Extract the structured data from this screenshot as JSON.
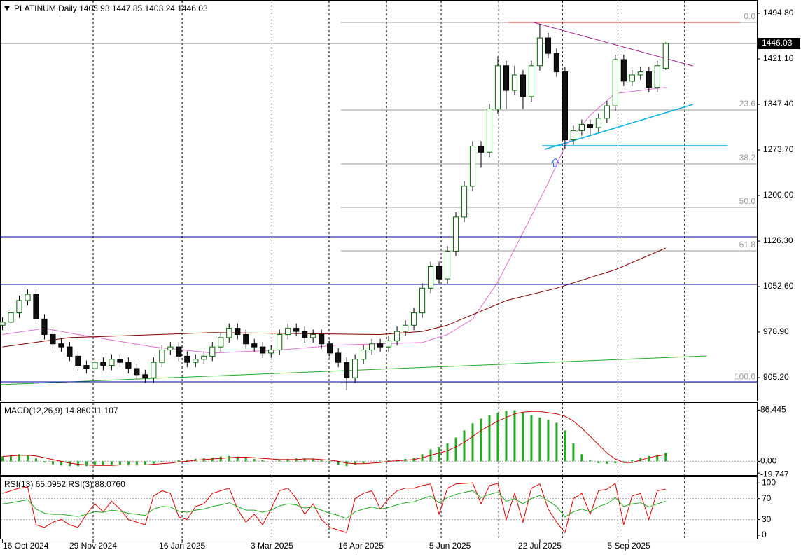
{
  "chart_data": {
    "type": "candlestick",
    "title": "PLATINUM,Daily  1405.93 1447.85 1403.24 1446.03",
    "xlim": [
      -0.25,
      89.9
    ],
    "xticks": [
      {
        "value": 0,
        "label": "16 Oct 2024"
      },
      {
        "value": 10.8,
        "label": "29 Nov 2024"
      },
      {
        "value": 21.4,
        "label": "16 Jan 2025"
      },
      {
        "value": 32.1,
        "label": "3 Mar 2025"
      },
      {
        "value": 42.7,
        "label": "16 Apr 2025"
      },
      {
        "value": 53.3,
        "label": "5 Jun 2025"
      },
      {
        "value": 64,
        "label": "22 Jul 2025"
      },
      {
        "value": 74.6,
        "label": "5 Sep 2025"
      }
    ],
    "vgrid": [
      10.8,
      21.4,
      32.1,
      38.9,
      45.75,
      52.25,
      59.1,
      66.7,
      73.3,
      81.25
    ],
    "ylim": [
      866.7,
      1515.2
    ],
    "yticks": [
      {
        "value": 1494.8,
        "label": "1494.80"
      },
      {
        "value": 1421.1,
        "label": "1421.10"
      },
      {
        "value": 1347.4,
        "label": "1347.40"
      },
      {
        "value": 1273.7,
        "label": "1273.70"
      },
      {
        "value": 1200,
        "label": "1200.00"
      },
      {
        "value": 1126.3,
        "label": "1126.30"
      },
      {
        "value": 1052.6,
        "label": "1052.60"
      },
      {
        "value": 978.9,
        "label": "978.90"
      },
      {
        "value": 905.2,
        "label": "905.20"
      }
    ],
    "last_price": {
      "value": 1446.03,
      "label": "1446.03"
    },
    "candles": [
      [
        990,
        1003,
        982,
        995
      ],
      [
        995,
        1018,
        987,
        1010
      ],
      [
        1010,
        1038,
        1002,
        1030
      ],
      [
        1030,
        1048,
        1022,
        1040
      ],
      [
        1040,
        1048,
        992,
        1000
      ],
      [
        1000,
        1008,
        967,
        975
      ],
      [
        975,
        983,
        952,
        960
      ],
      [
        960,
        968,
        947,
        955
      ],
      [
        955,
        963,
        932,
        940
      ],
      [
        940,
        948,
        917,
        925
      ],
      [
        925,
        933,
        912,
        920
      ],
      [
        920,
        938,
        912,
        930
      ],
      [
        930,
        938,
        917,
        925
      ],
      [
        925,
        943,
        917,
        935
      ],
      [
        935,
        943,
        922,
        930
      ],
      [
        930,
        938,
        912,
        920
      ],
      [
        920,
        928,
        902,
        910
      ],
      [
        910,
        918,
        897,
        905
      ],
      [
        905,
        938,
        897,
        930
      ],
      [
        930,
        958,
        922,
        950
      ],
      [
        950,
        963,
        942,
        955
      ],
      [
        955,
        963,
        932,
        940
      ],
      [
        940,
        948,
        922,
        930
      ],
      [
        930,
        943,
        922,
        935
      ],
      [
        935,
        948,
        927,
        940
      ],
      [
        940,
        963,
        932,
        955
      ],
      [
        955,
        978,
        947,
        970
      ],
      [
        970,
        993,
        962,
        985
      ],
      [
        985,
        993,
        967,
        975
      ],
      [
        975,
        983,
        952,
        960
      ],
      [
        960,
        968,
        947,
        955
      ],
      [
        955,
        963,
        937,
        945
      ],
      [
        945,
        958,
        937,
        950
      ],
      [
        950,
        983,
        942,
        975
      ],
      [
        975,
        993,
        967,
        985
      ],
      [
        985,
        993,
        972,
        980
      ],
      [
        980,
        988,
        962,
        970
      ],
      [
        970,
        983,
        962,
        975
      ],
      [
        975,
        983,
        952,
        960
      ],
      [
        960,
        968,
        937,
        945
      ],
      [
        945,
        953,
        922,
        930
      ],
      [
        930,
        938,
        885,
        905
      ],
      [
        905,
        943,
        897,
        935
      ],
      [
        935,
        958,
        927,
        950
      ],
      [
        950,
        968,
        942,
        960
      ],
      [
        960,
        968,
        947,
        955
      ],
      [
        955,
        973,
        947,
        965
      ],
      [
        965,
        988,
        957,
        980
      ],
      [
        980,
        998,
        972,
        990
      ],
      [
        990,
        1018,
        982,
        1010
      ],
      [
        1010,
        1058,
        1002,
        1050
      ],
      [
        1050,
        1093,
        1042,
        1085
      ],
      [
        1085,
        1093,
        1057,
        1065
      ],
      [
        1065,
        1118,
        1057,
        1110
      ],
      [
        1110,
        1173,
        1102,
        1165
      ],
      [
        1165,
        1223,
        1157,
        1215
      ],
      [
        1215,
        1288,
        1207,
        1280
      ],
      [
        1280,
        1288,
        1245,
        1270
      ],
      [
        1270,
        1348,
        1262,
        1340
      ],
      [
        1340,
        1425,
        1332,
        1410
      ],
      [
        1410,
        1418,
        1340,
        1370
      ],
      [
        1370,
        1410,
        1362,
        1395
      ],
      [
        1395,
        1403,
        1340,
        1360
      ],
      [
        1360,
        1418,
        1352,
        1410
      ],
      [
        1410,
        1478,
        1402,
        1455
      ],
      [
        1455,
        1463,
        1422,
        1430
      ],
      [
        1430,
        1438,
        1392,
        1400
      ],
      [
        1400,
        1408,
        1275,
        1290
      ],
      [
        1290,
        1313,
        1282,
        1305
      ],
      [
        1305,
        1323,
        1297,
        1315
      ],
      [
        1315,
        1323,
        1297,
        1310
      ],
      [
        1310,
        1333,
        1302,
        1325
      ],
      [
        1325,
        1353,
        1317,
        1345
      ],
      [
        1345,
        1428,
        1337,
        1420
      ],
      [
        1420,
        1428,
        1377,
        1385
      ],
      [
        1385,
        1403,
        1377,
        1395
      ],
      [
        1395,
        1408,
        1387,
        1400
      ],
      [
        1400,
        1408,
        1367,
        1375
      ],
      [
        1375,
        1418,
        1367,
        1410
      ],
      [
        1405.93,
        1447.85,
        1403.24,
        1446.03
      ]
    ],
    "lines": [
      {
        "color": "#e070d0",
        "x": [
          0,
          5,
          9,
          18,
          25,
          33,
          40,
          45,
          50,
          53,
          56,
          59,
          62,
          65,
          67,
          70,
          73,
          76,
          79
        ],
        "values": [
          975,
          985,
          975,
          955,
          945,
          950,
          958,
          960,
          962,
          975,
          1000,
          1060,
          1140,
          1220,
          1280,
          1330,
          1365,
          1370,
          1375
        ]
      },
      {
        "color": "#800000",
        "x": [
          0,
          8,
          25,
          45,
          50,
          53,
          60,
          66,
          73,
          79
        ],
        "values": [
          955,
          970,
          978,
          975,
          980,
          990,
          1030,
          1050,
          1080,
          1115
        ]
      },
      {
        "color": "#22aa22",
        "x": [
          -0.25,
          83.9
        ],
        "values": [
          893.9,
          940.4
        ]
      },
      {
        "color": "#0000aa",
        "x": [
          -0.25,
          89.9
        ],
        "values": [
          1133.1,
          1133.1
        ]
      },
      {
        "color": "#0000aa",
        "x": [
          -0.25,
          89.9
        ],
        "values": [
          1056,
          1056
        ]
      },
      {
        "color": "#0000aa",
        "x": [
          -0.25,
          89.9
        ],
        "values": [
          898.4,
          898.4
        ]
      },
      {
        "color": "#dd2222",
        "x": [
          60.3,
          87.9
        ],
        "values": [
          1480,
          1480
        ]
      },
      {
        "color": "#a0208a",
        "x": [
          63.25,
          82.25
        ],
        "values": [
          1480,
          1409.7
        ]
      },
      {
        "color": "#00b0e0",
        "x": [
          64.3,
          86.4
        ],
        "values": [
          1280.5,
          1280.5
        ]
      },
      {
        "color": "#00b0e0",
        "x": [
          64.6,
          82.25
        ],
        "values": [
          1274.8,
          1347.4
        ]
      }
    ],
    "fibo": {
      "x": [
        40.3,
        89.9
      ],
      "levels": [
        {
          "value": 1480,
          "label": "0.0"
        },
        {
          "value": 1338.3,
          "label": "23.6"
        },
        {
          "value": 1251,
          "label": "38.2"
        },
        {
          "value": 1180.7,
          "label": "50.0"
        },
        {
          "value": 1110.4,
          "label": "61.8"
        },
        {
          "value": 897,
          "label": "100.0"
        }
      ]
    },
    "macd": {
      "title": "MACD(12,26,9) 14.860 11.107",
      "ylim": [
        -24.35,
        98.6
      ],
      "yticks": [
        86.445,
        {
          "value": 0,
          "label": "0.00"
        },
        -19.747
      ],
      "histogram": [
        8,
        10,
        12,
        10,
        5,
        -2,
        -5,
        -7,
        -8,
        -8,
        -8,
        -7,
        -7,
        -6,
        -6,
        -7,
        -7,
        -6,
        -4,
        -2,
        0,
        2,
        3,
        4,
        5,
        6,
        8,
        9,
        8,
        6,
        4,
        2,
        0,
        2,
        4,
        5,
        5,
        4,
        2,
        -2,
        -6,
        -8,
        -6,
        -3,
        0,
        1,
        2,
        3,
        4,
        6,
        12,
        20,
        24,
        30,
        40,
        52,
        64,
        72,
        78,
        82,
        85,
        86,
        82,
        78,
        74,
        70,
        65,
        52,
        30,
        12,
        2,
        -3,
        -4,
        -3,
        -2,
        2,
        6,
        9,
        11,
        14.86
      ],
      "signal": [
        8,
        9,
        10,
        10,
        9,
        6,
        3,
        0,
        -3,
        -5,
        -6,
        -7,
        -7,
        -7,
        -6,
        -6,
        -6,
        -6,
        -5,
        -4,
        -3,
        -1,
        0,
        2,
        3,
        4,
        5,
        6,
        7,
        7,
        6,
        5,
        4,
        3,
        3,
        3,
        4,
        4,
        3,
        2,
        0,
        -3,
        -4,
        -4,
        -3,
        -2,
        0,
        1,
        2,
        3,
        6,
        10,
        14,
        18,
        24,
        32,
        42,
        52,
        60,
        68,
        74,
        80,
        83,
        84,
        84,
        82,
        80,
        76,
        68,
        56,
        42,
        28,
        14,
        4,
        -2,
        -2,
        2,
        6,
        9,
        11.107
      ],
      "hist_color": "#22aa22",
      "signal_color": "#cc0000"
    },
    "rsi": {
      "title": "RSI(13) 65.0952  RSI(3) 88.0760",
      "ylim": [
        -8,
        111
      ],
      "yticks": [
        100,
        70,
        30,
        0
      ],
      "levels": [
        70,
        30
      ],
      "series": [
        {
          "color": "#dd0000",
          "values": [
            80,
            85,
            90,
            92,
            20,
            15,
            25,
            30,
            20,
            15,
            40,
            60,
            45,
            65,
            50,
            30,
            25,
            20,
            75,
            85,
            80,
            35,
            30,
            55,
            60,
            80,
            85,
            90,
            50,
            25,
            40,
            20,
            50,
            85,
            90,
            70,
            40,
            60,
            30,
            15,
            10,
            5,
            70,
            80,
            85,
            50,
            70,
            85,
            90,
            90,
            95,
            98,
            40,
            90,
            98,
            99,
            100,
            60,
            95,
            99,
            30,
            80,
            25,
            90,
            98,
            50,
            25,
            5,
            70,
            80,
            40,
            85,
            88,
            99,
            20,
            75,
            80,
            30,
            85,
            88.076
          ]
        },
        {
          "color": "#22aa22",
          "values": [
            60,
            62,
            65,
            68,
            50,
            42,
            40,
            40,
            38,
            36,
            40,
            45,
            44,
            48,
            46,
            42,
            40,
            38,
            50,
            55,
            54,
            46,
            44,
            48,
            50,
            55,
            58,
            62,
            55,
            48,
            48,
            44,
            48,
            56,
            60,
            58,
            52,
            54,
            48,
            42,
            38,
            32,
            45,
            50,
            54,
            50,
            53,
            58,
            62,
            64,
            70,
            75,
            62,
            72,
            78,
            82,
            85,
            72,
            78,
            82,
            65,
            70,
            60,
            70,
            76,
            66,
            55,
            35,
            45,
            50,
            45,
            55,
            60,
            72,
            55,
            60,
            62,
            54,
            60,
            65.0952
          ]
        }
      ]
    }
  }
}
